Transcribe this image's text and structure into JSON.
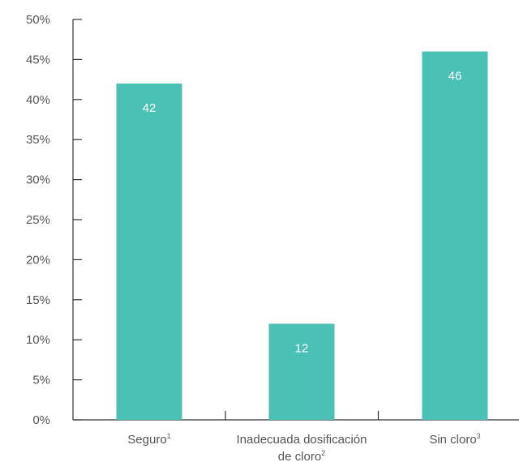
{
  "chart_data": {
    "type": "bar",
    "title": "",
    "xlabel": "",
    "ylabel": "",
    "ylim": [
      0,
      50
    ],
    "y_ticks": [
      "0%",
      "5%",
      "10%",
      "15%",
      "20%",
      "25%",
      "30%",
      "35%",
      "40%",
      "45%",
      "50%"
    ],
    "categories": [
      {
        "lines": [
          {
            "text": "Seguro",
            "sup": "1"
          }
        ]
      },
      {
        "lines": [
          {
            "text": "Inadecuada dosificación",
            "sup": ""
          },
          {
            "text": "de cloro",
            "sup": "2"
          }
        ]
      },
      {
        "lines": [
          {
            "text": "Sin cloro",
            "sup": "3"
          }
        ]
      }
    ],
    "values": [
      42,
      12,
      46
    ],
    "value_labels": [
      "42",
      "12",
      "46"
    ],
    "bar_color": "#4bc1b6",
    "axis_color": "#333333",
    "grid": false,
    "legend": "none"
  }
}
